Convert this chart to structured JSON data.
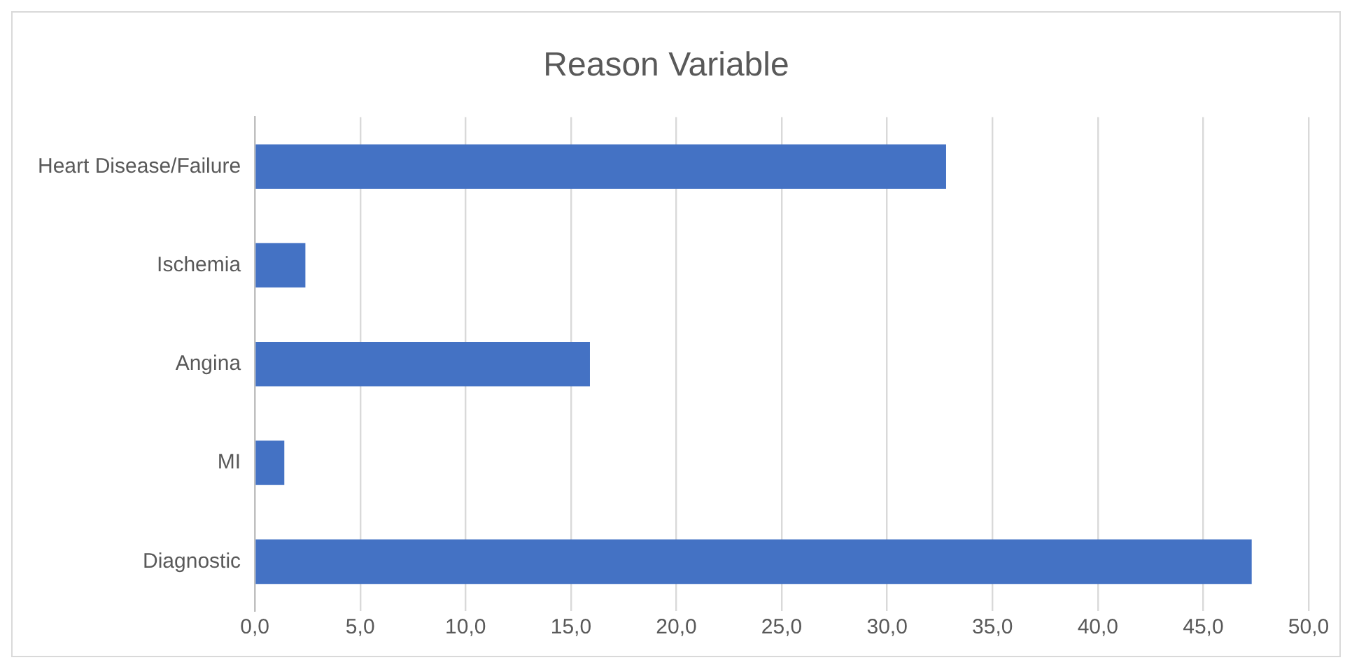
{
  "chart_data": {
    "type": "bar",
    "orientation": "horizontal",
    "title": "Reason Variable",
    "categories": [
      "Heart Disease/Failure",
      "Ischemia",
      "Angina",
      "MI",
      "Diagnostic"
    ],
    "values": [
      32.8,
      2.4,
      15.9,
      1.4,
      47.3
    ],
    "color": "#4472c4",
    "xlim": [
      0,
      50
    ],
    "xticks": [
      {
        "value": 0,
        "label": "0,0"
      },
      {
        "value": 5,
        "label": "5,0"
      },
      {
        "value": 10,
        "label": "10,0"
      },
      {
        "value": 15,
        "label": "15,0"
      },
      {
        "value": 20,
        "label": "20,0"
      },
      {
        "value": 25,
        "label": "25,0"
      },
      {
        "value": 30,
        "label": "30,0"
      },
      {
        "value": 35,
        "label": "35,0"
      },
      {
        "value": 40,
        "label": "40,0"
      },
      {
        "value": 45,
        "label": "45,0"
      },
      {
        "value": 50,
        "label": "50,0"
      }
    ],
    "grid": "x",
    "legend": false
  }
}
